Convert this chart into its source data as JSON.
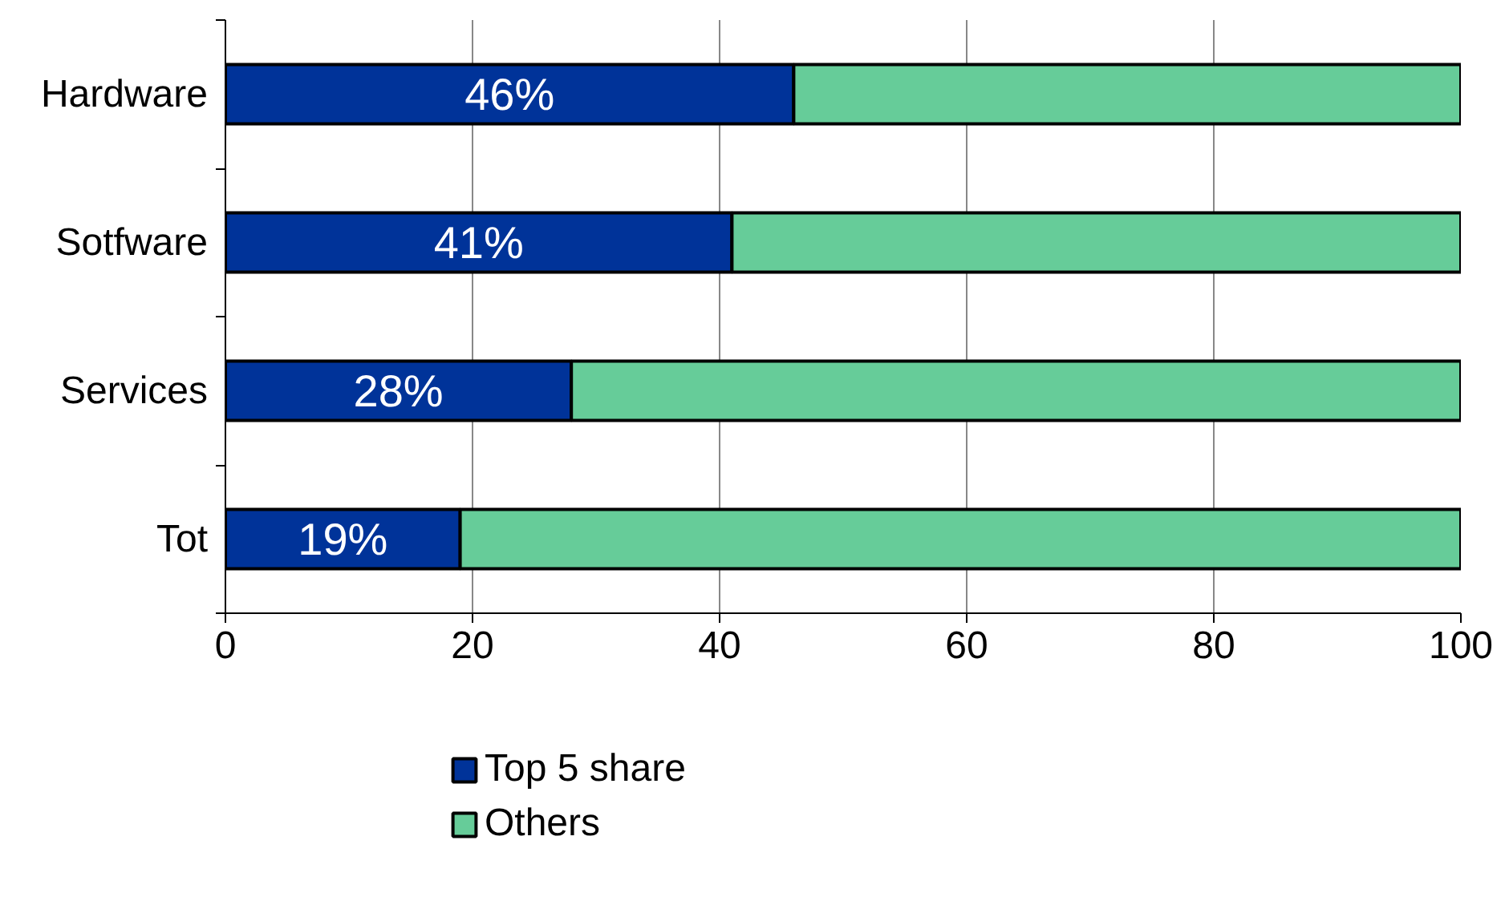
{
  "chart_data": {
    "type": "bar",
    "orientation": "horizontal",
    "stacked": true,
    "categories": [
      "Hardware",
      "Sotfware",
      "Services",
      "Tot"
    ],
    "series": [
      {
        "name": "Top 5 share",
        "color": "#003399",
        "values": [
          46,
          41,
          28,
          19
        ],
        "value_labels": [
          "46%",
          "41%",
          "28%",
          "19%"
        ]
      },
      {
        "name": "Others",
        "color": "#66cc99",
        "values": [
          54,
          59,
          72,
          81
        ]
      }
    ],
    "xlim": [
      0,
      100
    ],
    "xticks": [
      0,
      20,
      40,
      60,
      80,
      100
    ],
    "grid": "x",
    "legend": "bottom"
  }
}
